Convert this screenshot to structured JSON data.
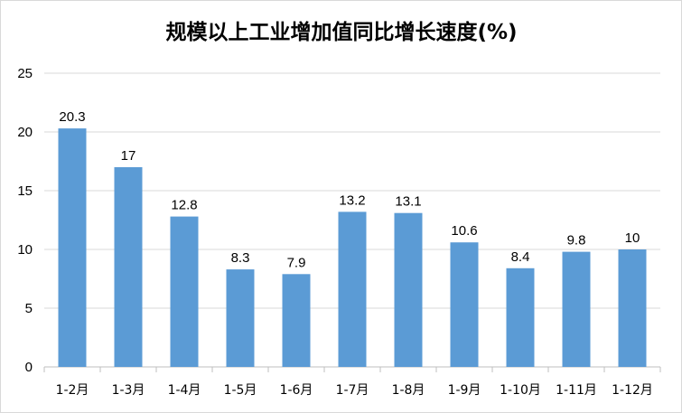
{
  "chart_data": {
    "type": "bar",
    "title": "规模以上工业增加值同比增长速度(%)",
    "categories": [
      "1-2月",
      "1-3月",
      "1-4月",
      "1-5月",
      "1-6月",
      "1-7月",
      "1-8月",
      "1-9月",
      "1-10月",
      "1-11月",
      "1-12月"
    ],
    "values": [
      20.3,
      17,
      12.8,
      8.3,
      7.9,
      13.2,
      13.1,
      10.6,
      8.4,
      9.8,
      10
    ],
    "data_labels": [
      "20.3",
      "17",
      "12.8",
      "8.3",
      "7.9",
      "13.2",
      "13.1",
      "10.6",
      "8.4",
      "9.8",
      "10"
    ],
    "ylim": [
      0,
      25
    ],
    "yticks": [
      "0",
      "5",
      "10",
      "15",
      "20",
      "25"
    ],
    "grid": true,
    "legend": "none",
    "colors": {
      "bar": "#5b9bd5",
      "gridline": "#d9d9d9"
    }
  }
}
